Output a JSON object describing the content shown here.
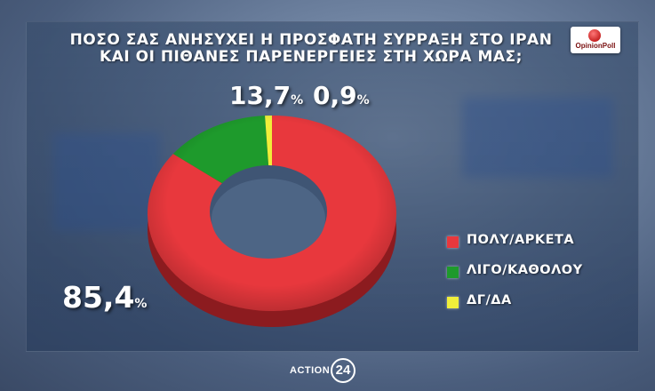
{
  "title_lines": [
    "ΠΟΣΟ ΣΑΣ ΑΝΗΣΥΧΕΙ Η ΠΡΟΣΦΑΤΗ ΣΥΡΡΑΞΗ ΣΤΟ ΙΡΑΝ",
    "ΚΑΙ ΟΙ ΠΙΘΑΝΕΣ ΠΑΡΕΝΕΡΓΕΙΕΣ ΣΤΗ ΧΩΡΑ ΜΑΣ;"
  ],
  "logo_text": "OpinionPoll",
  "brand": {
    "word": "ACTION",
    "number": "24"
  },
  "chart_data": {
    "type": "pie",
    "style": "donut",
    "title": "ΠΟΣΟ ΣΑΣ ΑΝΗΣΥΧΕΙ Η ΠΡΟΣΦΑΤΗ ΣΥΡΡΑΞΗ ΣΤΟ ΙΡΑΝ ΚΑΙ ΟΙ ΠΙΘΑΝΕΣ ΠΑΡΕΝΕΡΓΕΙΕΣ ΣΤΗ ΧΩΡΑ ΜΑΣ;",
    "legend_position": "right",
    "slices": [
      {
        "label": "ΠΟΛΥ/ΑΡΚΕΤΑ",
        "value": 85.4,
        "value_text": "85,4",
        "color": "#e8383d"
      },
      {
        "label": "ΛΙΓΟ/ΚΑΘΟΛΟΥ",
        "value": 13.7,
        "value_text": "13,7",
        "color": "#1e9a2c"
      },
      {
        "label": "ΔΓ/ΔΑ",
        "value": 0.9,
        "value_text": "0,9",
        "color": "#f0ee3a"
      }
    ],
    "unit": "%"
  }
}
